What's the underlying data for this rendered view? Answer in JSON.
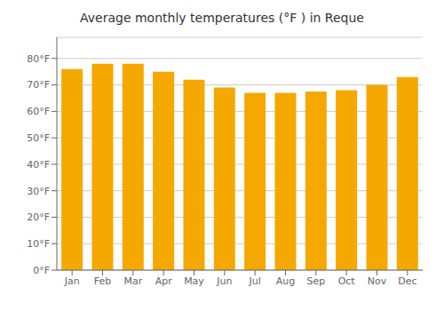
{
  "chart_data": {
    "type": "bar",
    "title": "Average monthly temperatures (°F ) in Reque",
    "categories": [
      "Jan",
      "Feb",
      "Mar",
      "Apr",
      "May",
      "Jun",
      "Jul",
      "Aug",
      "Sep",
      "Oct",
      "Nov",
      "Dec"
    ],
    "values": [
      76,
      78,
      78,
      75,
      72,
      69,
      67,
      67,
      67.5,
      68,
      70,
      73
    ],
    "color": "#F5A800",
    "ylim": [
      0,
      88
    ],
    "yticks": [
      {
        "value": 0,
        "label": "0°F"
      },
      {
        "value": 10,
        "label": "10°F"
      },
      {
        "value": 20,
        "label": "20°F"
      },
      {
        "value": 30,
        "label": "30°F"
      },
      {
        "value": 40,
        "label": "40°F"
      },
      {
        "value": 50,
        "label": "50°F"
      },
      {
        "value": 60,
        "label": "60°F"
      },
      {
        "value": 70,
        "label": "70°F"
      },
      {
        "value": 80,
        "label": "80°F"
      }
    ],
    "grid": true
  }
}
